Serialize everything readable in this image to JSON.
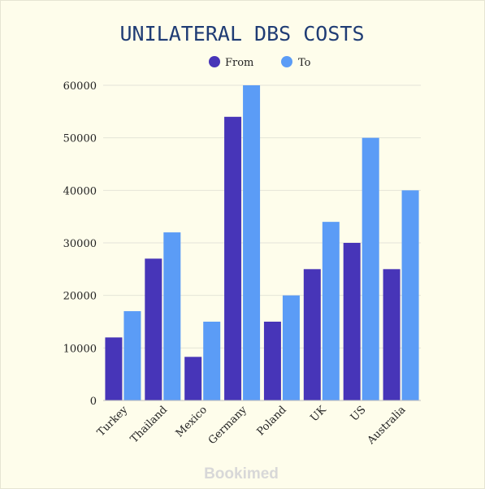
{
  "chart_data": {
    "type": "bar",
    "title": "UNILATERAL DBS COSTS",
    "categories": [
      "Turkey",
      "Thailand",
      "Mexico",
      "Germany",
      "Poland",
      "UK",
      "US",
      "Australia"
    ],
    "series": [
      {
        "name": "From",
        "color": "#4735b8",
        "values": [
          12000,
          27000,
          8300,
          54000,
          15000,
          25000,
          30000,
          25000
        ]
      },
      {
        "name": "To",
        "color": "#5b9cf6",
        "values": [
          17000,
          32000,
          15000,
          60000,
          20000,
          34000,
          50000,
          40000
        ]
      }
    ],
    "ylim": [
      0,
      60000
    ],
    "yticks": [
      "0",
      "10000",
      "20000",
      "30000",
      "40000",
      "50000",
      "60000"
    ],
    "grid": true,
    "legend_position": "top-center"
  },
  "watermark": "Bookimed"
}
